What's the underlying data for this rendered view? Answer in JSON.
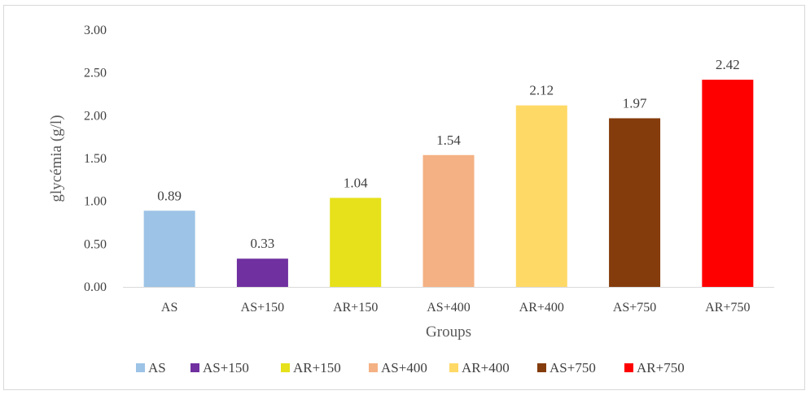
{
  "chart_data": {
    "type": "bar",
    "categories": [
      "AS",
      "AS+150",
      "AR+150",
      "AS+400",
      "AR+400",
      "AS+750",
      "AR+750"
    ],
    "values": [
      0.89,
      0.33,
      1.04,
      1.54,
      2.12,
      1.97,
      2.42
    ],
    "data_labels": [
      "0.89",
      "0.33",
      "1.04",
      "1.54",
      "2.12",
      "1.97",
      "2.42"
    ],
    "colors": [
      "#9dc3e6",
      "#7030a0",
      "#e6e11a",
      "#f4b183",
      "#ffd966",
      "#843c0c",
      "#ff0000"
    ],
    "xlabel": "Groups",
    "ylabel": "glycémia (g/l)",
    "ylim": [
      0,
      3
    ],
    "yticks": [
      "0.00",
      "0.50",
      "1.00",
      "1.50",
      "2.00",
      "2.50",
      "3.00"
    ],
    "ytick_values": [
      0,
      0.5,
      1,
      1.5,
      2,
      2.5,
      3
    ],
    "grid": false,
    "legend_position": "bottom",
    "legend": [
      "AS",
      "AS+150",
      "AR+150",
      "AS+400",
      "AR+400",
      "AS+750",
      "AR+750"
    ]
  }
}
